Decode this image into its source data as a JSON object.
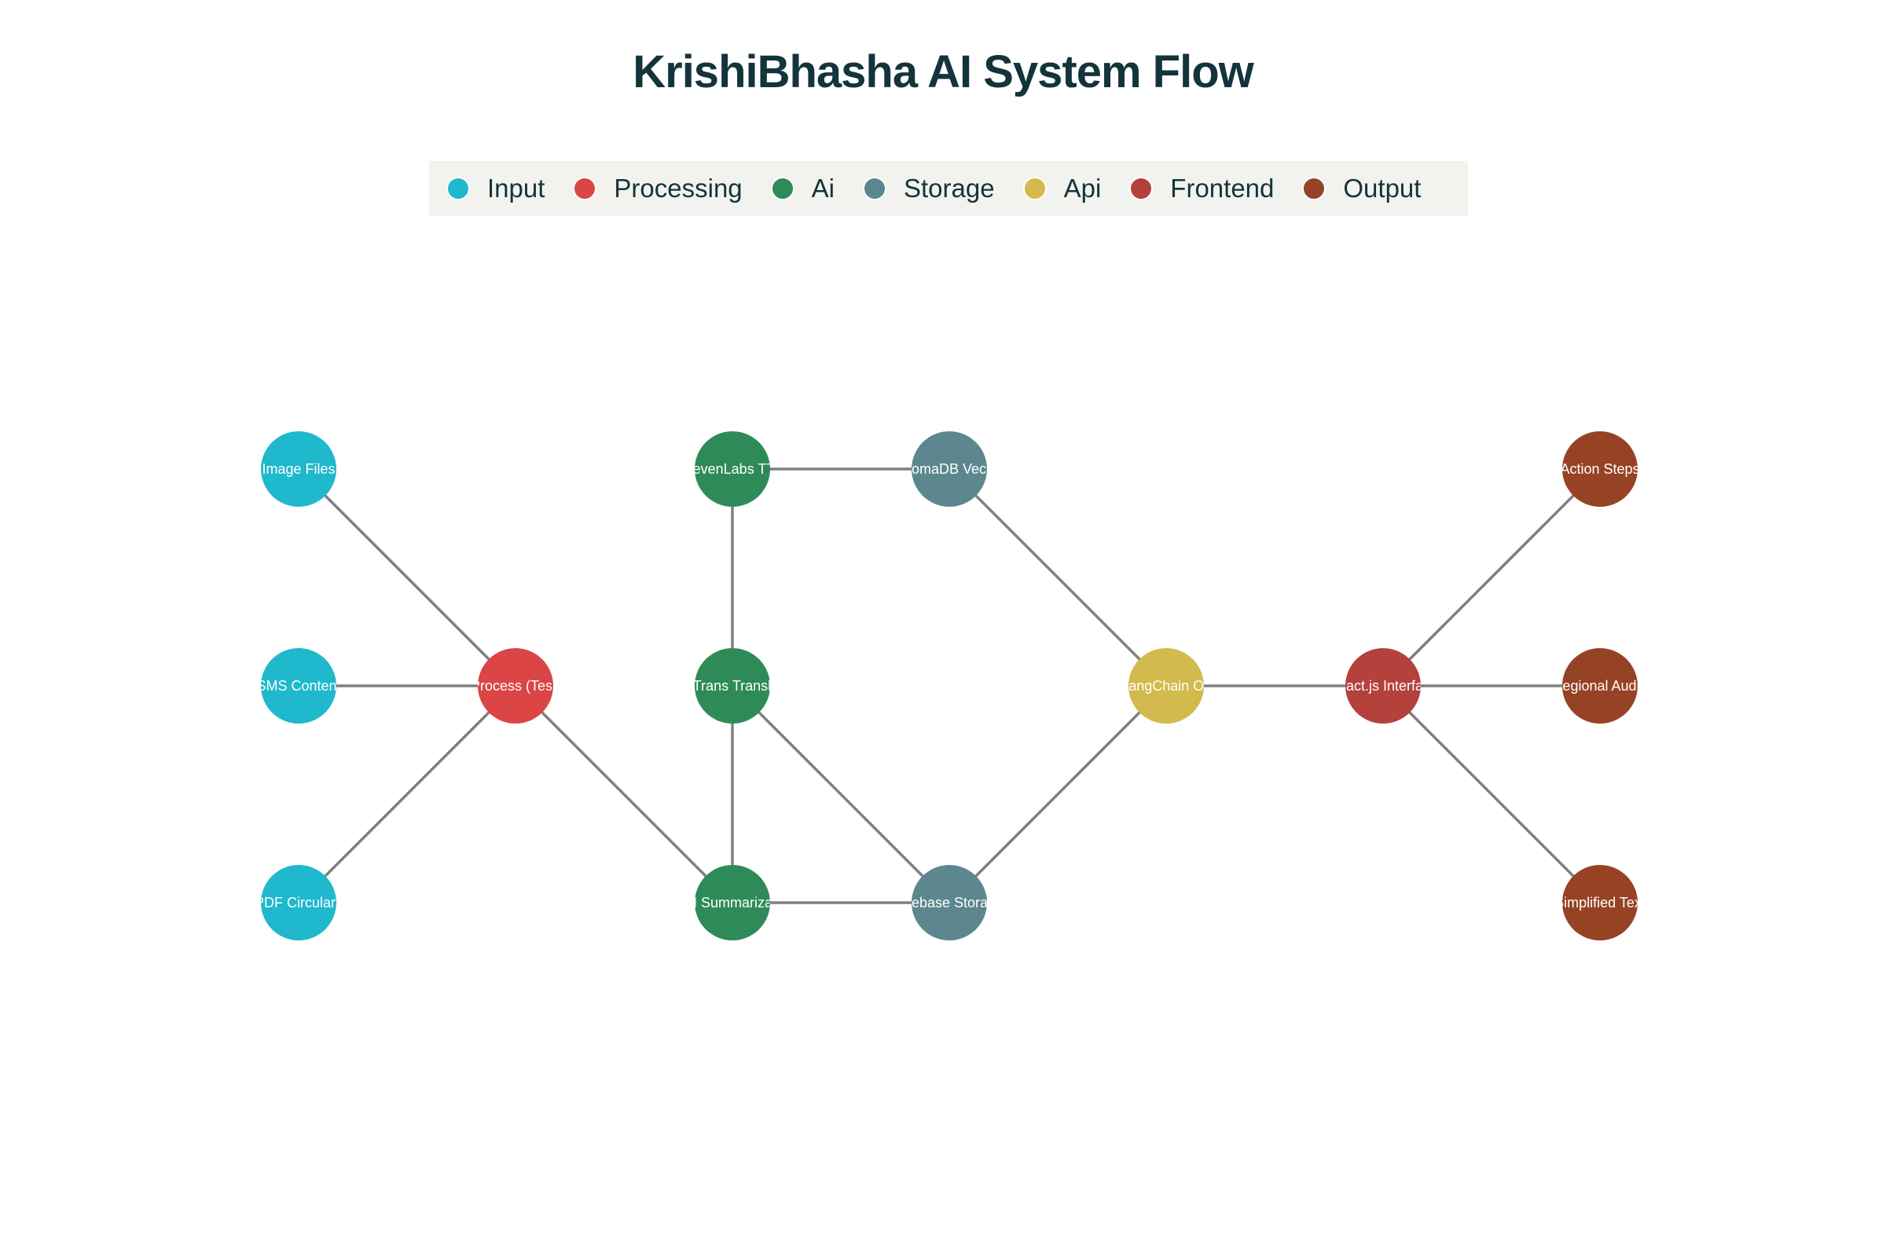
{
  "title": "KrishiBhasha AI System Flow",
  "legend": [
    {
      "key": "input",
      "label": "Input",
      "color": "#1fb8cd"
    },
    {
      "key": "processing",
      "label": "Processing",
      "color": "#db4545"
    },
    {
      "key": "ai",
      "label": "Ai",
      "color": "#2e8b57"
    },
    {
      "key": "storage",
      "label": "Storage",
      "color": "#5d878f"
    },
    {
      "key": "api",
      "label": "Api",
      "color": "#d2ba4c"
    },
    {
      "key": "frontend",
      "label": "Frontend",
      "color": "#b4413c"
    },
    {
      "key": "output",
      "label": "Output",
      "color": "#964325"
    }
  ],
  "edge_color": "#808080",
  "nodes": [
    {
      "id": "image-files",
      "label": "Image Files",
      "category": "input",
      "col": 0,
      "row": 0
    },
    {
      "id": "sms-content",
      "label": "SMS Content",
      "category": "input",
      "col": 0,
      "row": 1
    },
    {
      "id": "pdf-circulars",
      "label": "PDF Circulars",
      "category": "input",
      "col": 0,
      "row": 2
    },
    {
      "id": "ocr-process",
      "label": "OCR Process (Tesseract)",
      "category": "processing",
      "col": 1,
      "row": 1
    },
    {
      "id": "elevenlabs-tts",
      "label": "ElevenLabs TTS",
      "category": "ai",
      "col": 2,
      "row": 0
    },
    {
      "id": "indictrans-translation",
      "label": "IndicTrans Translation",
      "category": "ai",
      "col": 2,
      "row": 1
    },
    {
      "id": "llm-summarization",
      "label": "LLM Summarization",
      "category": "ai",
      "col": 2,
      "row": 2
    },
    {
      "id": "chromadb-vectors",
      "label": "ChromaDB Vectors",
      "category": "storage",
      "col": 3,
      "row": 0
    },
    {
      "id": "firebase-storage",
      "label": "Firebase Storage",
      "category": "storage",
      "col": 3,
      "row": 2
    },
    {
      "id": "fastapi-langchain",
      "label": "FastAPI + LangChain Orchestration",
      "category": "api",
      "col": 4,
      "row": 1
    },
    {
      "id": "reactjs-interface",
      "label": "React.js Interface",
      "category": "frontend",
      "col": 5,
      "row": 1
    },
    {
      "id": "action-steps",
      "label": "Action Steps",
      "category": "output",
      "col": 6,
      "row": 0
    },
    {
      "id": "regional-audio",
      "label": "Regional Audio",
      "category": "output",
      "col": 6,
      "row": 1
    },
    {
      "id": "simplified-text",
      "label": "Simplified Text",
      "category": "output",
      "col": 6,
      "row": 2
    }
  ],
  "edges": [
    [
      "image-files",
      "ocr-process"
    ],
    [
      "sms-content",
      "ocr-process"
    ],
    [
      "pdf-circulars",
      "ocr-process"
    ],
    [
      "ocr-process",
      "llm-summarization"
    ],
    [
      "llm-summarization",
      "indictrans-translation"
    ],
    [
      "indictrans-translation",
      "elevenlabs-tts"
    ],
    [
      "elevenlabs-tts",
      "chromadb-vectors"
    ],
    [
      "llm-summarization",
      "firebase-storage"
    ],
    [
      "indictrans-translation",
      "firebase-storage"
    ],
    [
      "chromadb-vectors",
      "fastapi-langchain"
    ],
    [
      "firebase-storage",
      "fastapi-langchain"
    ],
    [
      "fastapi-langchain",
      "reactjs-interface"
    ],
    [
      "reactjs-interface",
      "action-steps"
    ],
    [
      "reactjs-interface",
      "regional-audio"
    ],
    [
      "reactjs-interface",
      "simplified-text"
    ]
  ]
}
